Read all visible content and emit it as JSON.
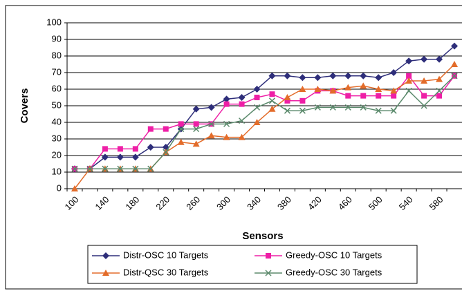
{
  "chart_data": {
    "type": "line",
    "x_label": "Sensors",
    "y_label": "Covers",
    "categories": [
      "100",
      null,
      "140",
      null,
      "180",
      null,
      "220",
      null,
      "260",
      null,
      "300",
      null,
      "340",
      null,
      "380",
      null,
      "420",
      null,
      "460",
      null,
      "500",
      null,
      "540",
      null,
      "580",
      null
    ],
    "series": [
      {
        "name": "Distr-OSC 10 Targets",
        "color": "#2e2e7a",
        "marker": "diamond",
        "values": [
          12,
          12,
          19,
          19,
          19,
          25,
          25,
          36,
          48,
          49,
          54,
          55,
          60,
          68,
          68,
          67,
          67,
          68,
          68,
          68,
          67,
          70,
          77,
          78,
          78,
          86
        ]
      },
      {
        "name": "Greedy-OSC 10 Targets",
        "color": "#ee1fa6",
        "marker": "square",
        "values": [
          12,
          12,
          24,
          24,
          24,
          36,
          36,
          39,
          39,
          39,
          51,
          51,
          55,
          57,
          53,
          53,
          59,
          59,
          56,
          56,
          56,
          56,
          68,
          56,
          56,
          68
        ]
      },
      {
        "name": "Distr-QSC 30 Targets",
        "color": "#e36c2a",
        "marker": "triangle",
        "values": [
          0,
          12,
          12,
          12,
          12,
          12,
          22,
          28,
          27,
          32,
          31,
          31,
          40,
          48,
          55,
          60,
          60,
          59,
          61,
          62,
          60,
          59,
          65,
          65,
          66,
          75
        ]
      },
      {
        "name": "Greedy-OSC 30 Targets",
        "color": "#5b8a6c",
        "marker": "x",
        "values": [
          12,
          12,
          12,
          12,
          12,
          12,
          22,
          36,
          36,
          39,
          39,
          41,
          49,
          53,
          47,
          47,
          49,
          49,
          49,
          49,
          47,
          47,
          59,
          50,
          59,
          68
        ]
      }
    ],
    "ylim": [
      0,
      100
    ],
    "yticks": [
      0,
      10,
      20,
      30,
      40,
      50,
      60,
      70,
      80,
      90,
      100
    ],
    "grid": true
  }
}
